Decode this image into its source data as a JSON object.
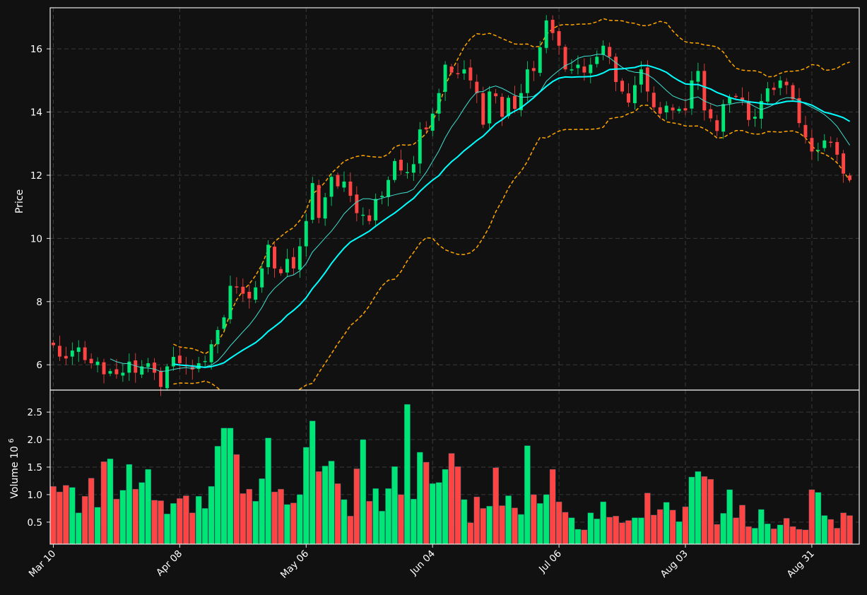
{
  "chart_data": {
    "type": "candlestick",
    "colors": {
      "background": "#111111",
      "up": "#00e676",
      "down": "#ff4444",
      "ma_fast": "#40e0d0",
      "ma_slow": "#00ffff",
      "bands": "#ffa500",
      "grid": "#3a3a3a",
      "frame": "#e8e8e8",
      "text": "#ffffff"
    },
    "price_panel": {
      "ylabel": "Price",
      "ylim": [
        5.2,
        17.3
      ],
      "yticks": [
        6,
        8,
        10,
        12,
        14,
        16
      ]
    },
    "volume_panel": {
      "ylabel": "Volume",
      "ylabel_exponent": "10",
      "ylabel_power": "6",
      "ylim": [
        0.1,
        2.9
      ],
      "yticks": [
        "0.5",
        "1.0",
        "1.5",
        "2.0",
        "2.5"
      ]
    },
    "x_axis": {
      "xlim": [
        -0.5,
        127.5
      ],
      "ticks": [
        {
          "index": 0,
          "label": "Mar 10"
        },
        {
          "index": 20,
          "label": "Apr 08"
        },
        {
          "index": 40,
          "label": "May 06"
        },
        {
          "index": 60,
          "label": "Jun 04"
        },
        {
          "index": 80,
          "label": "Jul 06"
        },
        {
          "index": 100,
          "label": "Aug 03"
        },
        {
          "index": 120,
          "label": "Aug 31"
        }
      ]
    },
    "closes": [
      6.62,
      6.26,
      6.2,
      6.45,
      6.55,
      6.15,
      6.05,
      6.1,
      5.7,
      5.8,
      5.7,
      5.75,
      6.1,
      5.75,
      5.95,
      6.05,
      5.75,
      5.3,
      5.95,
      6.25,
      6.05,
      5.95,
      5.85,
      6.05,
      6.12,
      6.65,
      7.1,
      7.5,
      8.5,
      8.45,
      8.25,
      8.1,
      8.45,
      9.05,
      9.8,
      9.05,
      8.9,
      9.35,
      9.05,
      9.75,
      10.55,
      11.75,
      10.65,
      11.3,
      11.95,
      11.65,
      11.8,
      11.35,
      10.8,
      10.75,
      10.55,
      11.25,
      11.35,
      11.85,
      12.45,
      12.15,
      12.1,
      12.35,
      13.45,
      13.45,
      13.95,
      14.6,
      15.5,
      15.25,
      15.2,
      15.35,
      15.0,
      14.6,
      13.6,
      14.65,
      14.5,
      13.85,
      14.45,
      14.1,
      14.6,
      15.35,
      15.3,
      16.05,
      16.9,
      16.5,
      16.1,
      15.35,
      15.35,
      15.5,
      15.25,
      15.5,
      15.75,
      16.1,
      15.75,
      14.95,
      14.65,
      14.3,
      14.85,
      15.35,
      14.65,
      14.15,
      13.95,
      14.2,
      14.05,
      14.1,
      14.05,
      15.0,
      15.3,
      14.05,
      13.8,
      13.4,
      14.25,
      14.45,
      14.5,
      14.35,
      13.75,
      13.85,
      14.35,
      14.75,
      14.7,
      15.0,
      14.85,
      14.4,
      13.65,
      13.2,
      12.75,
      12.8,
      13.1,
      13.05,
      12.65,
      12.05,
      11.85
    ],
    "volumes": [
      1.15,
      1.05,
      1.17,
      1.13,
      0.67,
      0.97,
      1.3,
      0.77,
      1.6,
      1.65,
      0.92,
      1.08,
      1.55,
      1.1,
      1.22,
      1.46,
      0.9,
      0.89,
      0.65,
      0.84,
      0.93,
      0.98,
      0.67,
      0.97,
      0.75,
      1.15,
      1.88,
      2.21,
      2.21,
      1.73,
      1.02,
      1.1,
      0.88,
      1.29,
      2.03,
      1.05,
      1.1,
      0.82,
      0.85,
      1.0,
      1.86,
      2.34,
      1.42,
      1.52,
      1.61,
      1.2,
      0.91,
      0.61,
      1.47,
      2.0,
      0.88,
      1.11,
      0.7,
      1.11,
      1.51,
      1.0,
      2.64,
      0.92,
      1.77,
      1.59,
      1.2,
      1.22,
      1.46,
      1.75,
      1.51,
      0.91,
      0.49,
      0.96,
      0.75,
      0.79,
      1.49,
      0.8,
      0.98,
      0.76,
      0.64,
      1.89,
      1.0,
      0.84,
      1.0,
      1.46,
      0.87,
      0.68,
      0.58,
      0.37,
      0.36,
      0.67,
      0.56,
      0.87,
      0.59,
      0.61,
      0.49,
      0.53,
      0.58,
      0.58,
      1.03,
      0.63,
      0.73,
      0.86,
      0.72,
      0.51,
      0.78,
      1.32,
      1.42,
      1.33,
      1.28,
      0.46,
      0.66,
      1.09,
      0.58,
      0.81,
      0.42,
      0.39,
      0.73,
      0.47,
      0.38,
      0.45,
      0.57,
      0.42,
      0.37,
      0.36,
      1.09,
      1.04,
      0.62,
      0.55,
      0.39,
      0.67,
      0.62
    ]
  }
}
